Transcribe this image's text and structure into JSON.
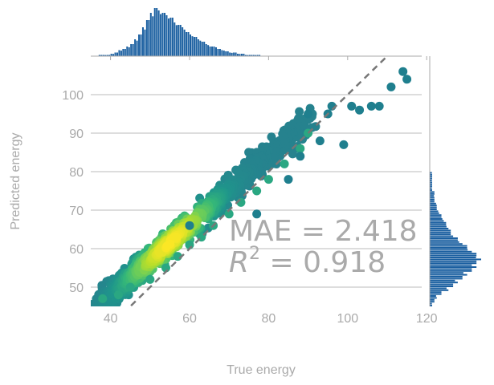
{
  "chart_data": {
    "type": "scatter",
    "title": "",
    "xlabel": "True energy",
    "ylabel": "Predicted energy",
    "xlim": [
      35,
      120
    ],
    "ylim": [
      45,
      108
    ],
    "xticks": [
      40,
      60,
      80,
      100,
      120
    ],
    "yticks": [
      50,
      60,
      70,
      80,
      90,
      100
    ],
    "grid": "horizontal",
    "reference_line": "y = x (dashed)",
    "colormap": "density (viridis-like, yellow = high density)",
    "annotations": {
      "mae": "MAE = 2.418",
      "r2_prefix": "R",
      "r2_sup": "2",
      "r2_suffix": " = 0.918"
    },
    "point_cloud": {
      "description": "dense diagonal band from about (38,46) to (90,92)",
      "core_points": [
        [
          38,
          47
        ],
        [
          42,
          48
        ],
        [
          45,
          50
        ],
        [
          50,
          52
        ],
        [
          54,
          55
        ],
        [
          57,
          58
        ],
        [
          60,
          61
        ],
        [
          63,
          63
        ],
        [
          66,
          66
        ],
        [
          70,
          69
        ],
        [
          73,
          72
        ],
        [
          77,
          75
        ],
        [
          80,
          78
        ],
        [
          84,
          82
        ],
        [
          88,
          86
        ],
        [
          90,
          90
        ]
      ],
      "outliers": [
        [
          60,
          66
        ],
        [
          77,
          69
        ],
        [
          85,
          78
        ],
        [
          88,
          84
        ],
        [
          90,
          95
        ],
        [
          93,
          88
        ],
        [
          95,
          95
        ],
        [
          96,
          97
        ],
        [
          99,
          87
        ],
        [
          101,
          97
        ],
        [
          103,
          96
        ],
        [
          106,
          97
        ],
        [
          108,
          97
        ],
        [
          111,
          102
        ],
        [
          114,
          106
        ],
        [
          115,
          104
        ]
      ]
    },
    "top_histogram": {
      "bin_start": 37,
      "bin_width": 1,
      "counts": [
        1,
        1,
        1,
        2,
        3,
        5,
        6,
        8,
        10,
        14,
        18,
        24,
        30,
        36,
        40,
        38,
        36,
        34,
        32,
        28,
        26,
        24,
        20,
        18,
        16,
        14,
        12,
        10,
        8,
        8,
        6,
        5,
        4,
        3,
        3,
        2,
        2,
        1,
        1,
        1,
        1
      ]
    },
    "right_histogram": {
      "bin_start": 45,
      "bin_width": 1,
      "counts": [
        1,
        2,
        3,
        5,
        8,
        10,
        12,
        14,
        16,
        18,
        20,
        20,
        22,
        20,
        18,
        16,
        14,
        12,
        10,
        9,
        8,
        7,
        6,
        5,
        4,
        3,
        3,
        2,
        2,
        2,
        1,
        1,
        1,
        1,
        1
      ]
    },
    "colors": {
      "hist": "#1a5fa0",
      "reference": "#777777",
      "grid": "#bbbbbb",
      "text": "#aaaaaa"
    }
  }
}
